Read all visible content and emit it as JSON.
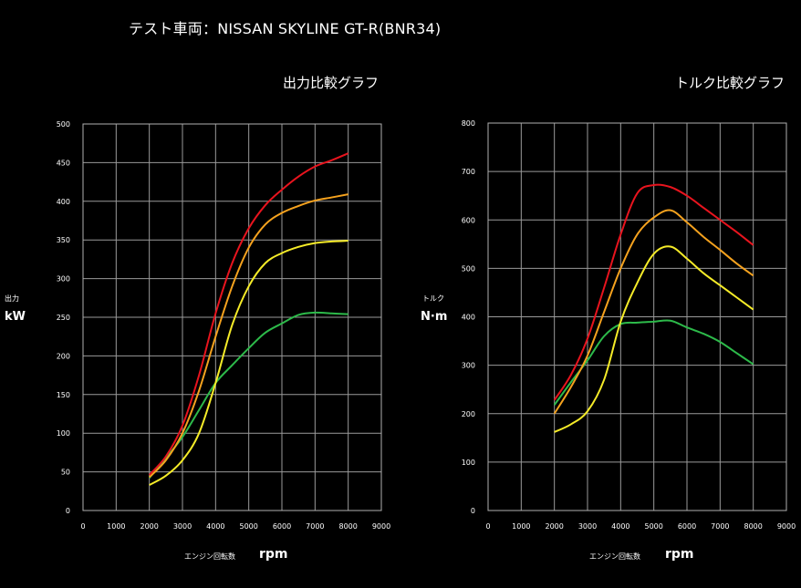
{
  "page_title": "テスト車両：NISSAN SKYLINE GT-R(BNR34)",
  "chart_data": [
    {
      "type": "line",
      "title": "出力比較グラフ",
      "ylabel_small": "出力",
      "ylabel": "kW",
      "xlabel_small": "エンジン回転数",
      "xlabel": "rpm",
      "xlim": [
        0,
        9000
      ],
      "ylim": [
        0,
        500
      ],
      "xticks": [
        "0",
        "1000",
        "2000",
        "3000",
        "4000",
        "5000",
        "6000",
        "7000",
        "8000",
        "9000"
      ],
      "yticks": [
        "0",
        "50",
        "100",
        "150",
        "200",
        "250",
        "300",
        "350",
        "400",
        "450",
        "500"
      ],
      "grid": true,
      "series": [
        {
          "color": "#e8141e",
          "x": [
            2000,
            2500,
            3000,
            3500,
            4000,
            4500,
            5000,
            5500,
            6000,
            6500,
            7000,
            7500,
            8000
          ],
          "y": [
            46,
            70,
            110,
            175,
            255,
            320,
            365,
            395,
            415,
            432,
            445,
            453,
            462
          ]
        },
        {
          "color": "#f5a21e",
          "x": [
            2000,
            2500,
            3000,
            3500,
            4000,
            4500,
            5000,
            5500,
            6000,
            6500,
            7000,
            7500,
            8000
          ],
          "y": [
            43,
            65,
            100,
            155,
            225,
            290,
            340,
            370,
            385,
            394,
            401,
            405,
            409
          ]
        },
        {
          "color": "#f5eb28",
          "x": [
            2000,
            2500,
            3000,
            3500,
            4000,
            4500,
            5000,
            5500,
            6000,
            6500,
            7000,
            7500,
            8000
          ],
          "y": [
            33,
            45,
            65,
            100,
            165,
            240,
            290,
            320,
            333,
            341,
            346,
            348,
            349
          ]
        },
        {
          "color": "#2dba4a",
          "x": [
            2000,
            2500,
            3000,
            3500,
            4000,
            4500,
            5000,
            5500,
            6000,
            6500,
            7000,
            7500,
            8000
          ],
          "y": [
            42,
            68,
            95,
            130,
            165,
            188,
            210,
            230,
            242,
            253,
            256,
            255,
            254
          ]
        }
      ]
    },
    {
      "type": "line",
      "title": "トルク比較グラフ",
      "ylabel_small": "トルク",
      "ylabel": "N·m",
      "xlabel_small": "エンジン回転数",
      "xlabel": "rpm",
      "xlim": [
        0,
        9000
      ],
      "ylim": [
        0,
        800
      ],
      "xticks": [
        "0",
        "1000",
        "2000",
        "3000",
        "4000",
        "5000",
        "6000",
        "7000",
        "8000",
        "9000"
      ],
      "yticks": [
        "0",
        "100",
        "200",
        "300",
        "400",
        "500",
        "600",
        "700",
        "800"
      ],
      "grid": true,
      "series": [
        {
          "color": "#e8141e",
          "x": [
            2000,
            2500,
            3000,
            3500,
            4000,
            4500,
            5000,
            5500,
            6000,
            6500,
            7000,
            7500,
            8000
          ],
          "y": [
            228,
            280,
            355,
            460,
            570,
            655,
            672,
            668,
            650,
            625,
            600,
            575,
            548
          ]
        },
        {
          "color": "#f5a21e",
          "x": [
            2000,
            2500,
            3000,
            3500,
            4000,
            4500,
            5000,
            5500,
            6000,
            6500,
            7000,
            7500,
            8000
          ],
          "y": [
            200,
            255,
            320,
            410,
            500,
            570,
            605,
            620,
            595,
            565,
            538,
            510,
            485
          ]
        },
        {
          "color": "#f5eb28",
          "x": [
            2000,
            2500,
            3000,
            3500,
            4000,
            4500,
            5000,
            5500,
            6000,
            6500,
            7000,
            7500,
            8000
          ],
          "y": [
            162,
            178,
            205,
            270,
            390,
            470,
            530,
            545,
            520,
            490,
            465,
            440,
            415
          ]
        },
        {
          "color": "#2dba4a",
          "x": [
            2000,
            2500,
            3000,
            3500,
            4000,
            4500,
            5000,
            5500,
            6000,
            6500,
            7000,
            7500,
            8000
          ],
          "y": [
            218,
            265,
            310,
            360,
            385,
            388,
            390,
            392,
            378,
            365,
            348,
            325,
            302
          ]
        }
      ]
    }
  ]
}
